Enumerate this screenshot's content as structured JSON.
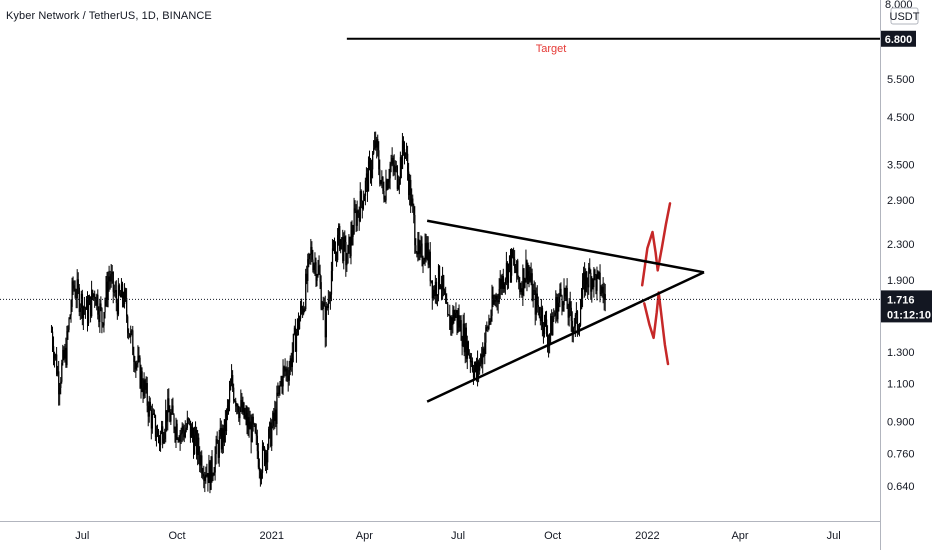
{
  "header": {
    "title": "Kyber Network / TetherUS, 1D, BINANCE"
  },
  "price_axis": {
    "currency": "USDT",
    "top_partial_label": "8.000"
  },
  "chart_data": {
    "type": "candlestick",
    "title": "Kyber Network / TetherUS, 1D, BINANCE",
    "log_scale": true,
    "y_tick_labels": [
      "6.800",
      "5.500",
      "4.500",
      "3.500",
      "2.900",
      "2.300",
      "1.900",
      "1.300",
      "1.100",
      "0.900",
      "0.760",
      "0.640"
    ],
    "y_ticks": [
      6.8,
      5.5,
      4.5,
      3.5,
      2.9,
      2.3,
      1.9,
      1.3,
      1.1,
      0.9,
      0.76,
      0.64
    ],
    "x_tick_labels": [
      "Jul",
      "Oct",
      "2021",
      "Apr",
      "Jul",
      "Oct",
      "2022",
      "Apr",
      "Jul"
    ],
    "x_ticks": [
      "2020-07-01",
      "2020-10-01",
      "2021-01-01",
      "2021-04-01",
      "2021-07-01",
      "2021-10-01",
      "2022-01-01",
      "2022-04-01",
      "2022-07-01"
    ],
    "ylim": [
      0.57,
      8.0
    ],
    "xlim": [
      "2020-04-12",
      "2022-08-15"
    ],
    "grid": false,
    "last_price": {
      "value": 1.716,
      "label": "1.716",
      "countdown": "01:12:10"
    },
    "target": {
      "value": 6.8,
      "label": "6.800",
      "text": "Target",
      "start": "2021-03-15",
      "color": "#000000",
      "text_color": "#e53935"
    },
    "price_path": [
      [
        "2020-06-01",
        1.45
      ],
      [
        "2020-06-08",
        1.12
      ],
      [
        "2020-06-15",
        1.3
      ],
      [
        "2020-06-22",
        1.85
      ],
      [
        "2020-06-29",
        1.72
      ],
      [
        "2020-07-06",
        1.6
      ],
      [
        "2020-07-13",
        1.8
      ],
      [
        "2020-07-20",
        1.55
      ],
      [
        "2020-07-27",
        1.95
      ],
      [
        "2020-08-03",
        1.7
      ],
      [
        "2020-08-10",
        1.75
      ],
      [
        "2020-08-17",
        1.4
      ],
      [
        "2020-08-24",
        1.2
      ],
      [
        "2020-08-31",
        1.05
      ],
      [
        "2020-09-07",
        0.9
      ],
      [
        "2020-09-14",
        0.82
      ],
      [
        "2020-09-21",
        0.95
      ],
      [
        "2020-09-28",
        0.9
      ],
      [
        "2020-10-05",
        0.85
      ],
      [
        "2020-10-12",
        0.88
      ],
      [
        "2020-10-19",
        0.8
      ],
      [
        "2020-10-26",
        0.72
      ],
      [
        "2020-11-02",
        0.68
      ],
      [
        "2020-11-09",
        0.78
      ],
      [
        "2020-11-16",
        0.85
      ],
      [
        "2020-11-23",
        1.1
      ],
      [
        "2020-11-30",
        0.98
      ],
      [
        "2020-12-07",
        0.9
      ],
      [
        "2020-12-14",
        0.85
      ],
      [
        "2020-12-21",
        0.72
      ],
      [
        "2020-12-28",
        0.8
      ],
      [
        "2021-01-04",
        0.92
      ],
      [
        "2021-01-11",
        1.15
      ],
      [
        "2021-01-18",
        1.2
      ],
      [
        "2021-01-25",
        1.45
      ],
      [
        "2021-02-01",
        1.7
      ],
      [
        "2021-02-08",
        2.2
      ],
      [
        "2021-02-15",
        2.0
      ],
      [
        "2021-02-22",
        1.5
      ],
      [
        "2021-03-01",
        2.1
      ],
      [
        "2021-03-08",
        2.4
      ],
      [
        "2021-03-15",
        2.1
      ],
      [
        "2021-03-22",
        2.6
      ],
      [
        "2021-03-29",
        2.9
      ],
      [
        "2021-04-05",
        3.3
      ],
      [
        "2021-04-12",
        3.9
      ],
      [
        "2021-04-19",
        3.0
      ],
      [
        "2021-04-26",
        3.5
      ],
      [
        "2021-05-03",
        3.3
      ],
      [
        "2021-05-10",
        3.9
      ],
      [
        "2021-05-17",
        2.8
      ],
      [
        "2021-05-24",
        2.1
      ],
      [
        "2021-05-31",
        2.3
      ],
      [
        "2021-06-07",
        1.8
      ],
      [
        "2021-06-14",
        1.95
      ],
      [
        "2021-06-21",
        1.5
      ],
      [
        "2021-06-28",
        1.6
      ],
      [
        "2021-07-05",
        1.45
      ],
      [
        "2021-07-12",
        1.3
      ],
      [
        "2021-07-19",
        1.15
      ],
      [
        "2021-07-26",
        1.35
      ],
      [
        "2021-08-02",
        1.6
      ],
      [
        "2021-08-09",
        1.8
      ],
      [
        "2021-08-16",
        2.0
      ],
      [
        "2021-08-23",
        2.1
      ],
      [
        "2021-08-30",
        1.85
      ],
      [
        "2021-09-06",
        2.05
      ],
      [
        "2021-09-13",
        1.7
      ],
      [
        "2021-09-20",
        1.6
      ],
      [
        "2021-09-27",
        1.4
      ],
      [
        "2021-10-04",
        1.65
      ],
      [
        "2021-10-11",
        1.8
      ],
      [
        "2021-10-18",
        1.55
      ],
      [
        "2021-10-25",
        1.5
      ],
      [
        "2021-11-01",
        1.9
      ],
      [
        "2021-11-08",
        1.95
      ],
      [
        "2021-11-15",
        1.85
      ],
      [
        "2021-11-22",
        1.716
      ]
    ],
    "annotations": {
      "triangle_upper": [
        [
          "2021-06-01",
          2.6
        ],
        [
          "2022-02-25",
          1.98
        ]
      ],
      "triangle_lower": [
        [
          "2021-06-01",
          1.0
        ],
        [
          "2022-02-25",
          1.98
        ]
      ],
      "red_up_scribble": [
        [
          "2021-12-27",
          1.85
        ],
        [
          "2022-01-01",
          2.25
        ],
        [
          "2022-01-06",
          2.45
        ],
        [
          "2022-01-09",
          2.2
        ],
        [
          "2022-01-11",
          2.0
        ],
        [
          "2022-01-15",
          2.25
        ],
        [
          "2022-01-19",
          2.55
        ],
        [
          "2022-01-23",
          2.85
        ]
      ],
      "red_down_scribble": [
        [
          "2021-12-29",
          1.68
        ],
        [
          "2022-01-03",
          1.5
        ],
        [
          "2022-01-07",
          1.4
        ],
        [
          "2022-01-10",
          1.6
        ],
        [
          "2022-01-12",
          1.78
        ],
        [
          "2022-01-15",
          1.55
        ],
        [
          "2022-01-18",
          1.35
        ],
        [
          "2022-01-21",
          1.22
        ]
      ]
    }
  }
}
